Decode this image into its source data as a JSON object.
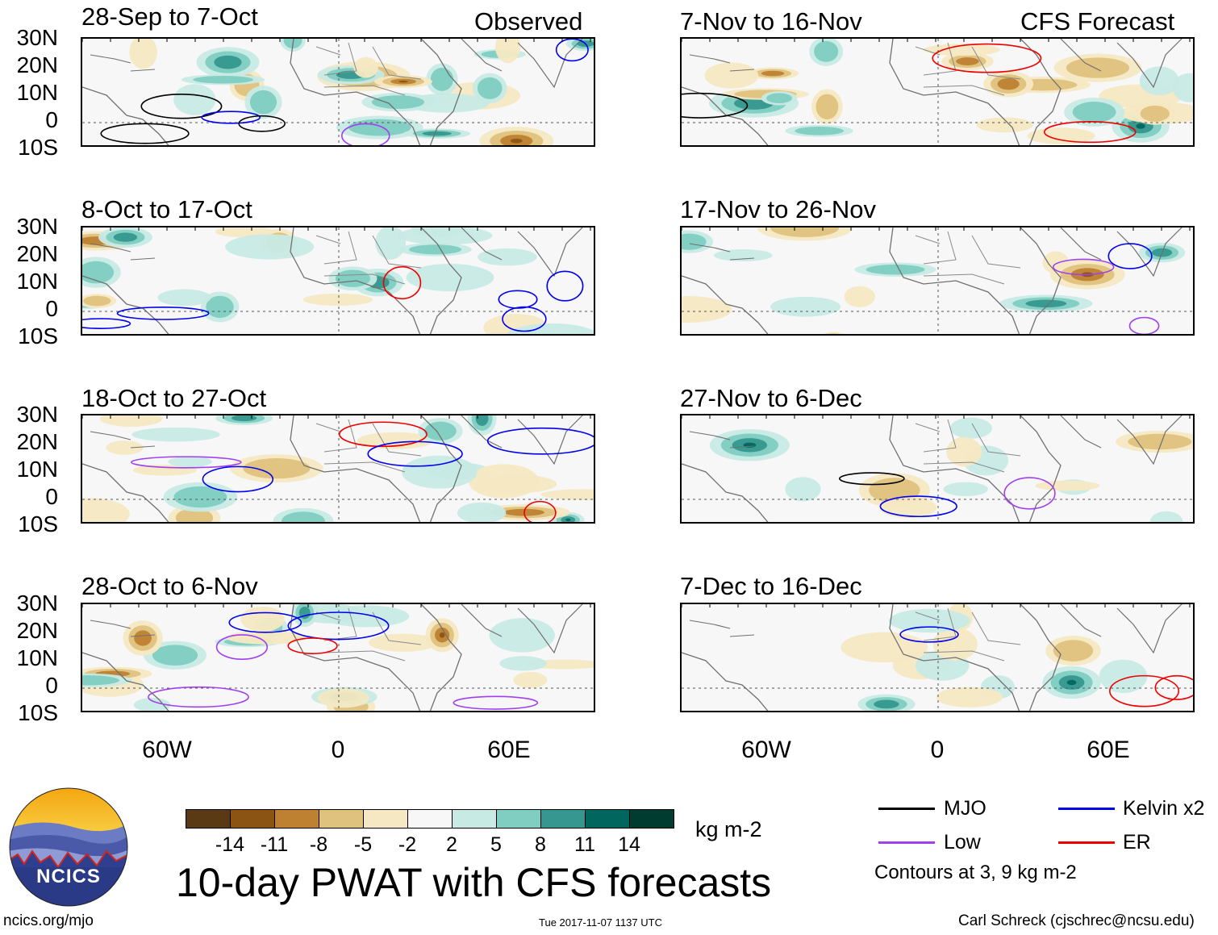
{
  "headers": {
    "observed": "Observed",
    "forecast": "CFS Forecast"
  },
  "panels_left": [
    {
      "title": "28-Sep to 7-Oct"
    },
    {
      "title": "8-Oct to 17-Oct"
    },
    {
      "title": "18-Oct to 27-Oct"
    },
    {
      "title": "28-Oct to 6-Nov"
    }
  ],
  "panels_right": [
    {
      "title": "7-Nov to 16-Nov"
    },
    {
      "title": "17-Nov to 26-Nov"
    },
    {
      "title": "27-Nov to 6-Dec"
    },
    {
      "title": "7-Dec to 16-Dec"
    }
  ],
  "y_labels": [
    "30N",
    "20N",
    "10N",
    "0",
    "10S"
  ],
  "x_labels": [
    "60W",
    "0",
    "60E"
  ],
  "colorbar": {
    "colors": [
      "#5a3a14",
      "#8c5412",
      "#be8131",
      "#dfc27d",
      "#f6e8c3",
      "#f7f7f7",
      "#c7eae5",
      "#80cdc1",
      "#35978f",
      "#01665e",
      "#003c30"
    ],
    "ticks": [
      "-14",
      "-11",
      "-8",
      "-5",
      "-2",
      "2",
      "5",
      "8",
      "11",
      "14"
    ],
    "units": "kg m-2"
  },
  "legend": {
    "mjo": {
      "label": "MJO",
      "color": "#000000"
    },
    "low": {
      "label": "Low",
      "color": "#a040f0"
    },
    "kelvin": {
      "label": "Kelvin x2",
      "color": "#0000ee"
    },
    "er": {
      "label": "ER",
      "color": "#ee0000"
    },
    "note": "Contours at 3, 9 kg m-2"
  },
  "logo": {
    "text": "NCICS"
  },
  "main_title": "10-day PWAT with CFS forecasts",
  "footer": {
    "url": "ncics.org/mjo",
    "timestamp": "Tue 2017-11-07 1137 UTC",
    "credit": "Carl Schreck (cjschrec@ncsu.edu)"
  }
}
